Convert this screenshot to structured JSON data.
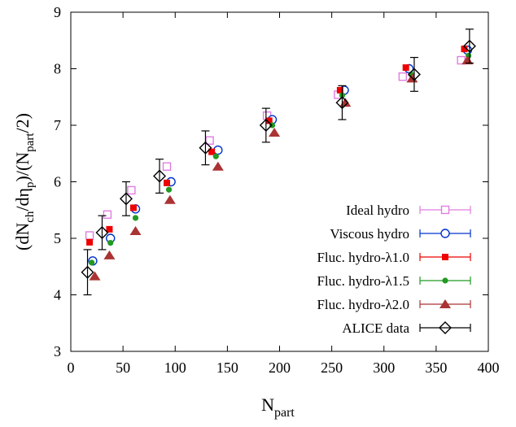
{
  "chart_data": {
    "type": "scatter",
    "xlabel": {
      "main": "N",
      "sub": "part"
    },
    "ylabel": [
      {
        "t": "(dN",
        "s": "n"
      },
      {
        "t": "ch",
        "s": "sub"
      },
      {
        "t": "/dη",
        "s": "n"
      },
      {
        "t": "p",
        "s": "sub"
      },
      {
        "t": ")/(N",
        "s": "n"
      },
      {
        "t": "part",
        "s": "sub"
      },
      {
        "t": "/2)",
        "s": "n"
      }
    ],
    "xlim": [
      0,
      400
    ],
    "ylim": [
      3,
      9
    ],
    "xticks": [
      0,
      50,
      100,
      150,
      200,
      250,
      300,
      350,
      400
    ],
    "yticks": [
      3,
      4,
      5,
      6,
      7,
      8,
      9
    ],
    "grid": false,
    "legend_position": "bottom-right",
    "series": [
      {
        "name": "Ideal hydro",
        "marker": "open-square",
        "color": "#e07ee0",
        "points": [
          [
            18,
            5.05
          ],
          [
            35,
            5.42
          ],
          [
            58,
            5.85
          ],
          [
            92,
            6.27
          ],
          [
            133,
            6.73
          ],
          [
            188,
            7.17
          ],
          [
            256,
            7.54
          ],
          [
            318,
            7.86
          ],
          [
            374,
            8.15
          ]
        ]
      },
      {
        "name": "Viscous hydro",
        "marker": "open-circle",
        "color": "#0033cc",
        "points": [
          [
            21,
            4.6
          ],
          [
            38,
            5.0
          ],
          [
            62,
            5.52
          ],
          [
            96,
            6.0
          ],
          [
            141,
            6.56
          ],
          [
            193,
            7.1
          ],
          [
            262,
            7.62
          ],
          [
            324,
            8.0
          ],
          [
            380,
            8.33
          ]
        ]
      },
      {
        "name": "Fluc. hydro-λ1.0",
        "marker": "filled-square",
        "color": "#ee0000",
        "points": [
          [
            18,
            4.93
          ],
          [
            37,
            5.16
          ],
          [
            60,
            5.54
          ],
          [
            92,
            5.98
          ],
          [
            135,
            6.53
          ],
          [
            190,
            7.08
          ],
          [
            258,
            7.62
          ],
          [
            321,
            8.02
          ],
          [
            377,
            8.35
          ]
        ]
      },
      {
        "name": "Fluc. hydro-λ1.5",
        "marker": "filled-circle",
        "color": "#229922",
        "points": [
          [
            20,
            4.57
          ],
          [
            38,
            4.92
          ],
          [
            62,
            5.36
          ],
          [
            94,
            5.86
          ],
          [
            139,
            6.45
          ],
          [
            193,
            7.0
          ],
          [
            260,
            7.53
          ],
          [
            326,
            7.9
          ],
          [
            381,
            8.23
          ]
        ]
      },
      {
        "name": "Fluc. hydro-λ2.0",
        "marker": "filled-triangle",
        "color": "#aa3333",
        "points": [
          [
            23,
            4.33
          ],
          [
            37,
            4.7
          ],
          [
            62,
            5.13
          ],
          [
            95,
            5.68
          ],
          [
            141,
            6.27
          ],
          [
            195,
            6.87
          ],
          [
            263,
            7.4
          ],
          [
            327,
            7.83
          ],
          [
            380,
            8.15
          ]
        ]
      },
      {
        "name": "ALICE data",
        "marker": "open-diamond",
        "color": "#000000",
        "points": [
          [
            16,
            4.4,
            0.4
          ],
          [
            30,
            5.1,
            0.3
          ],
          [
            53,
            5.7,
            0.3
          ],
          [
            85,
            6.1,
            0.3
          ],
          [
            129,
            6.6,
            0.3
          ],
          [
            187,
            7.0,
            0.3
          ],
          [
            260,
            7.4,
            0.3
          ],
          [
            329,
            7.9,
            0.3
          ],
          [
            382,
            8.4,
            0.3
          ]
        ]
      }
    ]
  }
}
